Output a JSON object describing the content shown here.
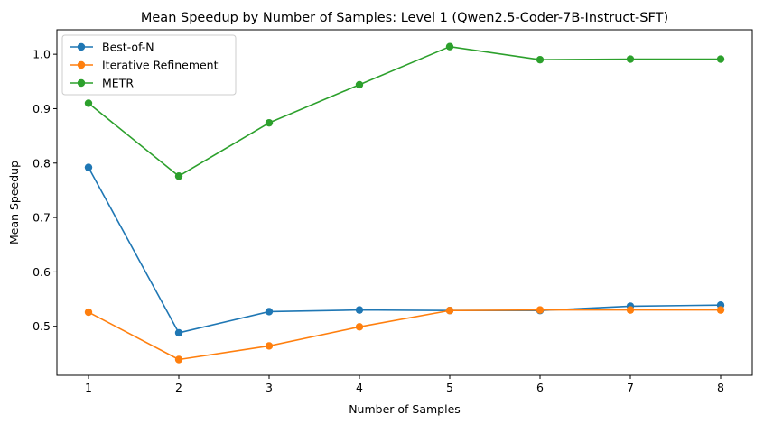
{
  "chart_data": {
    "type": "line",
    "title": "Mean Speedup by Number of Samples: Level 1 (Qwen2.5-Coder-7B-Instruct-SFT)",
    "xlabel": "Number of Samples",
    "ylabel": "Mean Speedup",
    "x": [
      1,
      2,
      3,
      4,
      5,
      6,
      7,
      8
    ],
    "xticks": [
      "1",
      "2",
      "3",
      "4",
      "5",
      "6",
      "7",
      "8"
    ],
    "yticks": [
      "0.5",
      "0.6",
      "0.7",
      "0.8",
      "0.9",
      "1.0"
    ],
    "ytick_values": [
      0.5,
      0.6,
      0.7,
      0.8,
      0.9,
      1.0
    ],
    "xlim": [
      0.65,
      8.35
    ],
    "ylim": [
      0.41,
      1.045
    ],
    "grid": false,
    "legend_position": "upper-left",
    "series": [
      {
        "name": "Best-of-N",
        "color": "#1f77b4",
        "values": [
          0.792,
          0.488,
          0.527,
          0.53,
          0.529,
          0.529,
          0.537,
          0.539
        ]
      },
      {
        "name": "Iterative Refinement",
        "color": "#ff7f0e",
        "values": [
          0.526,
          0.439,
          0.464,
          0.499,
          0.529,
          0.53,
          0.53,
          0.53
        ]
      },
      {
        "name": "METR",
        "color": "#2ca02c",
        "values": [
          0.91,
          0.776,
          0.874,
          0.944,
          1.014,
          0.99,
          0.991,
          0.991
        ]
      }
    ]
  }
}
